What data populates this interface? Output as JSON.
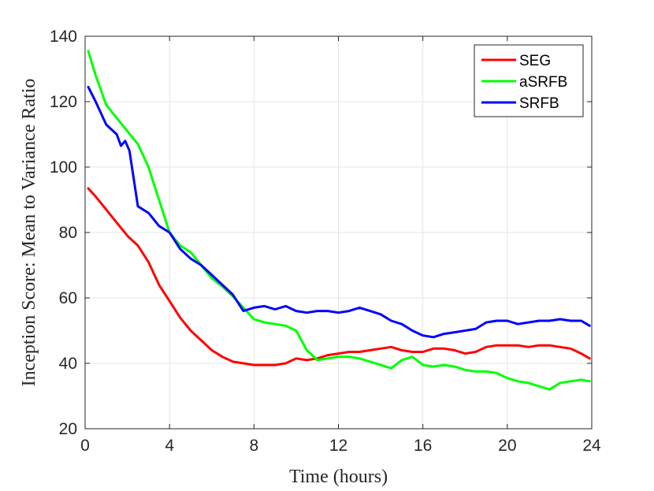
{
  "chart_data": {
    "type": "line",
    "title": "",
    "xlabel": "Time (hours)",
    "ylabel": "Inception Score: Mean to Variance Ratio",
    "xlim": [
      0,
      24
    ],
    "ylim": [
      20,
      140
    ],
    "xticks": [
      0,
      4,
      8,
      12,
      16,
      20,
      24
    ],
    "yticks": [
      20,
      40,
      60,
      80,
      100,
      120,
      140
    ],
    "grid": true,
    "legend_position": "top-right",
    "series": [
      {
        "name": "SEG",
        "color": "#ff0000",
        "x": [
          0.15,
          0.5,
          1.0,
          1.5,
          2.0,
          2.5,
          3.0,
          3.5,
          4.0,
          4.5,
          5.0,
          5.5,
          6.0,
          6.5,
          7.0,
          7.5,
          8.0,
          8.5,
          9.0,
          9.5,
          10.0,
          10.5,
          11.0,
          11.5,
          12.0,
          12.5,
          13.0,
          13.5,
          14.0,
          14.5,
          15.0,
          15.5,
          16.0,
          16.5,
          17.0,
          17.5,
          18.0,
          18.5,
          19.0,
          19.5,
          20.0,
          20.5,
          21.0,
          21.5,
          22.0,
          22.5,
          23.0,
          23.5,
          23.9
        ],
        "y": [
          93.5,
          91,
          87,
          83,
          79,
          76,
          71,
          64,
          59,
          54,
          50,
          47,
          44,
          42,
          40.5,
          40,
          39.5,
          39.5,
          39.5,
          40,
          41.5,
          41,
          41.5,
          42.5,
          43,
          43.5,
          43.5,
          44,
          44.5,
          45,
          44,
          43.5,
          43.5,
          44.5,
          44.5,
          44,
          43,
          43.5,
          45,
          45.5,
          45.5,
          45.5,
          45,
          45.5,
          45.5,
          45,
          44.5,
          43,
          41.5
        ]
      },
      {
        "name": "aSRFB",
        "color": "#00ff00",
        "x": [
          0.15,
          0.5,
          1.0,
          1.5,
          2.0,
          2.5,
          3.0,
          3.5,
          4.0,
          4.5,
          5.0,
          5.5,
          6.0,
          6.5,
          7.0,
          7.5,
          8.0,
          8.5,
          9.0,
          9.5,
          10.0,
          10.5,
          11.0,
          11.5,
          12.0,
          12.5,
          13.0,
          13.5,
          14.0,
          14.5,
          15.0,
          15.5,
          16.0,
          16.5,
          17.0,
          17.5,
          18.0,
          18.5,
          19.0,
          19.5,
          20.0,
          20.5,
          21.0,
          21.5,
          22.0,
          22.5,
          23.0,
          23.5,
          23.9
        ],
        "y": [
          135.5,
          128,
          119,
          115,
          111,
          107,
          100,
          90,
          80,
          76,
          74,
          70,
          66,
          63.5,
          60.5,
          57,
          53.5,
          52.5,
          52,
          51.5,
          50,
          44,
          41,
          41.5,
          42,
          42,
          41.5,
          40.5,
          39.5,
          38.5,
          41,
          42,
          39.5,
          39,
          39.5,
          39,
          38,
          37.5,
          37.5,
          37,
          35.5,
          34.5,
          34,
          33,
          32,
          34,
          34.5,
          35,
          34.5
        ]
      },
      {
        "name": "SRFB",
        "color": "#0000ff",
        "x": [
          0.15,
          0.5,
          1.0,
          1.5,
          1.7,
          1.9,
          2.1,
          2.5,
          3.0,
          3.5,
          4.0,
          4.5,
          5.0,
          5.5,
          6.0,
          6.5,
          7.0,
          7.5,
          8.0,
          8.5,
          9.0,
          9.5,
          10.0,
          10.5,
          11.0,
          11.5,
          12.0,
          12.5,
          13.0,
          13.5,
          14.0,
          14.5,
          15.0,
          15.5,
          16.0,
          16.5,
          17.0,
          17.5,
          18.0,
          18.5,
          19.0,
          19.5,
          20.0,
          20.5,
          21.0,
          21.5,
          22.0,
          22.5,
          23.0,
          23.5,
          23.9
        ],
        "y": [
          124.5,
          120,
          113,
          110,
          106.5,
          108,
          105,
          88,
          86,
          82,
          80,
          75,
          72,
          70,
          67,
          64,
          61,
          56,
          57,
          57.5,
          56.5,
          57.5,
          56,
          55.5,
          56,
          56,
          55.5,
          56,
          57,
          56,
          55,
          53,
          52,
          50,
          48.5,
          48,
          49,
          49.5,
          50,
          50.5,
          52.5,
          53,
          53,
          52,
          52.5,
          53,
          53,
          53.5,
          53,
          53,
          51.5
        ]
      }
    ]
  }
}
